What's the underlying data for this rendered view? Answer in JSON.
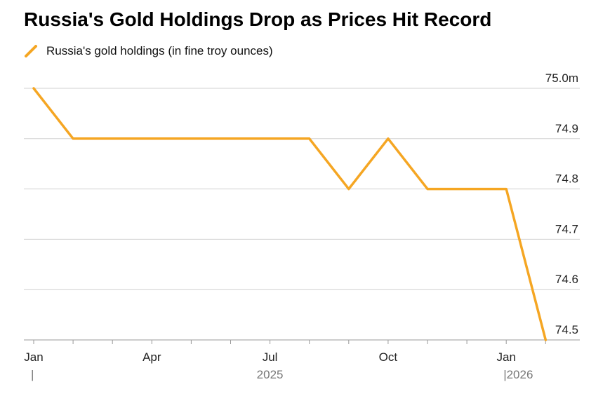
{
  "chart_data": {
    "type": "line",
    "title": "Russia's Gold Holdings Drop as Prices Hit Record",
    "colors": {
      "series": "#f5a623",
      "grid": "#d0d0d0",
      "axis": "#999999"
    },
    "x": [
      "2025-01",
      "2025-02",
      "2025-03",
      "2025-04",
      "2025-05",
      "2025-06",
      "2025-07",
      "2025-08",
      "2025-09",
      "2025-10",
      "2025-11",
      "2025-12",
      "2026-01",
      "2026-02"
    ],
    "series": [
      {
        "name": "Russia's gold holdings (in fine troy ounces)",
        "values": [
          75.0,
          74.9,
          74.9,
          74.9,
          74.9,
          74.9,
          74.9,
          74.9,
          74.8,
          74.9,
          74.8,
          74.8,
          74.8,
          74.5
        ]
      }
    ],
    "ylim": [
      74.5,
      75.0
    ],
    "yticks": [
      75.0,
      74.9,
      74.8,
      74.7,
      74.6,
      74.5
    ],
    "ytick_labels": [
      "75.0m",
      "74.9",
      "74.8",
      "74.7",
      "74.6",
      "74.5"
    ],
    "xticks": [
      {
        "x": "2025-01",
        "label": "Jan"
      },
      {
        "x": "2025-04",
        "label": "Apr"
      },
      {
        "x": "2025-07",
        "label": "Jul"
      },
      {
        "x": "2025-10",
        "label": "Oct"
      },
      {
        "x": "2026-01",
        "label": "Jan"
      }
    ],
    "year_labels": [
      {
        "x": "2025-01",
        "label": "|"
      },
      {
        "x": "2025-07",
        "label": "2025"
      },
      {
        "x": "2026-01",
        "label": "|2026"
      }
    ],
    "xlabel": "",
    "ylabel": "",
    "grid": true,
    "legend_position": "top-left"
  }
}
